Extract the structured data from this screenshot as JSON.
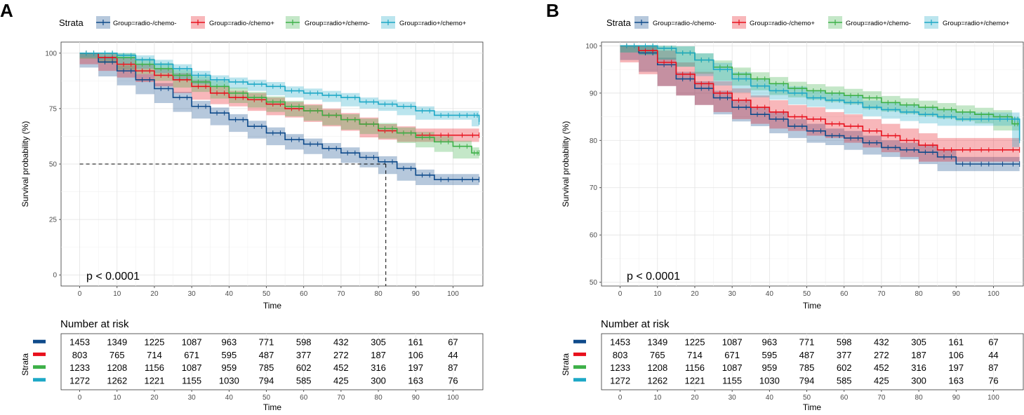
{
  "colors": {
    "radio-/chemo-": "#0e4a8a",
    "radio-/chemo+": "#e8101c",
    "radio+/chemo-": "#3db048",
    "radio+/chemo+": "#1da8c6"
  },
  "legend": {
    "title": "Strata",
    "entries": [
      "Group=radio-/chemo-",
      "Group=radio-/chemo+",
      "Group=radio+/chemo-",
      "Group=radio+/chemo+"
    ]
  },
  "risk_table": {
    "title": "Number at risk",
    "ylabel": "Strata",
    "xlabel": "Time",
    "time_points": [
      0,
      10,
      20,
      30,
      40,
      50,
      60,
      70,
      80,
      90,
      100
    ],
    "rows": [
      {
        "group": "radio-/chemo-",
        "counts": [
          "1453",
          "1349",
          "1225",
          "1087",
          "963",
          "771",
          "598",
          "432",
          "305",
          "161",
          "67"
        ]
      },
      {
        "group": "radio-/chemo+",
        "counts": [
          "803",
          "765",
          "714",
          "671",
          "595",
          "487",
          "377",
          "272",
          "187",
          "106",
          "44"
        ]
      },
      {
        "group": "radio+/chemo-",
        "counts": [
          "1233",
          "1208",
          "1156",
          "1087",
          "959",
          "785",
          "602",
          "452",
          "316",
          "197",
          "87"
        ]
      },
      {
        "group": "radio+/chemo+",
        "counts": [
          "1272",
          "1262",
          "1221",
          "1155",
          "1030",
          "794",
          "585",
          "425",
          "300",
          "163",
          "76"
        ]
      }
    ]
  },
  "chart_data": [
    {
      "panel": "A",
      "type": "line",
      "xlabel": "Time",
      "ylabel": "Survival probability (%)",
      "xlim": [
        -5,
        108
      ],
      "ylim": [
        -5,
        105
      ],
      "xticks": [
        0,
        10,
        20,
        30,
        40,
        50,
        60,
        70,
        80,
        90,
        100
      ],
      "yticks": [
        0,
        25,
        50,
        75,
        100
      ],
      "pvalue": "p < 0.0001",
      "median_line": {
        "y": 50,
        "x": 82
      },
      "series": [
        {
          "name": "radio-/chemo-",
          "x": [
            0,
            5,
            10,
            15,
            20,
            25,
            30,
            35,
            40,
            45,
            50,
            55,
            60,
            65,
            70,
            75,
            80,
            85,
            90,
            95,
            100,
            107
          ],
          "y": [
            100,
            96,
            92,
            88,
            84,
            80,
            76,
            73,
            70,
            67,
            64,
            61,
            59,
            57,
            55,
            53,
            51,
            48,
            45,
            43,
            43,
            43
          ],
          "ci": 2.5
        },
        {
          "name": "radio-/chemo+",
          "x": [
            0,
            5,
            10,
            15,
            20,
            25,
            30,
            35,
            40,
            45,
            50,
            55,
            60,
            65,
            70,
            75,
            80,
            85,
            90,
            95,
            100,
            107
          ],
          "y": [
            100,
            98,
            95,
            92,
            90,
            88,
            85,
            82,
            80,
            79,
            77,
            75,
            74,
            72,
            70,
            68,
            65,
            64,
            63,
            63,
            63,
            63
          ],
          "ci": 3
        },
        {
          "name": "radio+/chemo-",
          "x": [
            0,
            5,
            10,
            15,
            20,
            25,
            30,
            35,
            40,
            45,
            50,
            55,
            60,
            65,
            70,
            75,
            80,
            85,
            90,
            95,
            100,
            105,
            107
          ],
          "y": [
            100,
            100,
            98,
            95,
            93,
            90,
            87,
            85,
            82,
            80,
            78,
            76,
            74,
            72,
            70,
            68,
            66,
            64,
            62,
            60,
            58,
            55,
            55
          ],
          "ci": 2.5
        },
        {
          "name": "radio+/chemo+",
          "x": [
            0,
            5,
            10,
            15,
            20,
            25,
            30,
            35,
            40,
            45,
            50,
            55,
            60,
            65,
            70,
            75,
            80,
            85,
            90,
            95,
            100,
            105,
            107
          ],
          "y": [
            100,
            100,
            99,
            97,
            95,
            93,
            90,
            88,
            87,
            86,
            85,
            83,
            82,
            81,
            80,
            78,
            77,
            76,
            74,
            72,
            72,
            72,
            69
          ],
          "ci": 2
        }
      ]
    },
    {
      "panel": "B",
      "type": "line",
      "xlabel": "Time",
      "ylabel": "Survival probability (%)",
      "xlim": [
        -5,
        108
      ],
      "ylim": [
        49.2,
        100.8
      ],
      "xticks": [
        0,
        10,
        20,
        30,
        40,
        50,
        60,
        70,
        80,
        90,
        100
      ],
      "yticks": [
        50,
        60,
        70,
        80,
        90,
        100
      ],
      "pvalue": "p < 0.0001",
      "series": [
        {
          "name": "radio-/chemo-",
          "x": [
            0,
            5,
            10,
            15,
            20,
            25,
            30,
            35,
            40,
            45,
            50,
            55,
            60,
            65,
            70,
            75,
            80,
            85,
            90,
            95,
            100,
            107
          ],
          "y": [
            100,
            98.5,
            96,
            93,
            91,
            89,
            87,
            85.5,
            84.5,
            83,
            82,
            81,
            80.5,
            79.5,
            78.5,
            78,
            77.5,
            76.5,
            75,
            75,
            75,
            75
          ],
          "ci": 1.5
        },
        {
          "name": "radio-/chemo+",
          "x": [
            0,
            5,
            10,
            15,
            20,
            25,
            30,
            35,
            40,
            45,
            50,
            55,
            60,
            65,
            70,
            75,
            80,
            85,
            90,
            95,
            100,
            107
          ],
          "y": [
            100,
            99,
            96.5,
            94,
            92,
            90,
            88.5,
            87,
            86,
            85,
            84.5,
            83.5,
            83,
            82,
            81,
            80,
            79,
            78,
            78,
            78,
            78,
            78
          ],
          "ci": 2.5
        },
        {
          "name": "radio+/chemo-",
          "x": [
            0,
            5,
            10,
            15,
            20,
            25,
            30,
            35,
            40,
            45,
            50,
            55,
            60,
            65,
            70,
            75,
            80,
            85,
            90,
            95,
            100,
            105,
            107
          ],
          "y": [
            100,
            100,
            99.5,
            98.5,
            97,
            95.5,
            94,
            93,
            92,
            91,
            90.5,
            90,
            89.5,
            89,
            88,
            87.5,
            87,
            86.5,
            86,
            85.5,
            85,
            83.5,
            83.5
          ],
          "ci": 1.4
        },
        {
          "name": "radio+/chemo+",
          "x": [
            0,
            5,
            10,
            15,
            20,
            25,
            30,
            35,
            40,
            45,
            50,
            55,
            60,
            65,
            70,
            75,
            80,
            85,
            90,
            95,
            100,
            105,
            107
          ],
          "y": [
            100,
            100,
            99.5,
            98.5,
            97,
            95,
            93,
            91.5,
            90.5,
            90,
            89,
            88.5,
            88,
            87,
            86.5,
            86,
            85.5,
            85,
            84.5,
            84.5,
            84.5,
            84.5,
            80
          ],
          "ci": 1.4
        }
      ]
    }
  ]
}
